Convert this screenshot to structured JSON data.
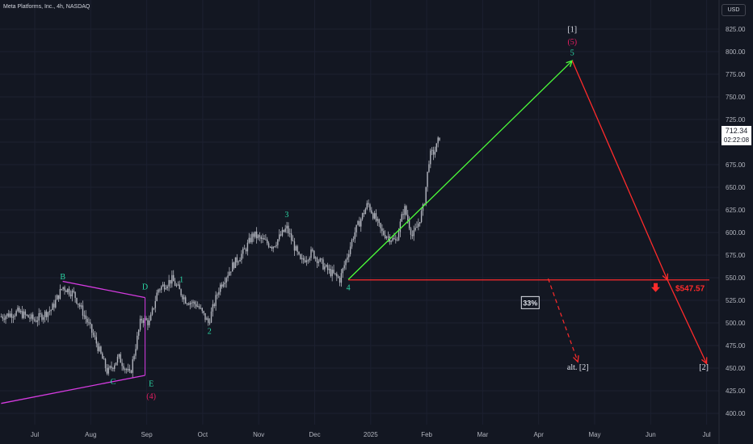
{
  "header": {
    "symbol_title": "Meta Platforms, Inc., 4h, NASDAQ",
    "currency": "USD"
  },
  "current_price": {
    "value": "712.34",
    "countdown": "02:22:08"
  },
  "colors": {
    "background": "#131722",
    "candles": "#b2b5be",
    "wave_green": "#2bd9a6",
    "wave_magenta": "#e91e63",
    "triangle_line": "#d53be0",
    "up_arrow": "#4cff3a",
    "down_arrow": "#ff2b2b",
    "label_white": "#e0e3eb"
  },
  "chart_data": {
    "type": "line",
    "title": "",
    "xlabel": "",
    "ylabel": "",
    "x_ticks": [
      "Jul",
      "Aug",
      "Sep",
      "Oct",
      "Nov",
      "Dec",
      "2025",
      "Feb",
      "Mar",
      "Apr",
      "May",
      "Jun",
      "Jul"
    ],
    "y_ticks": [
      400,
      425,
      450,
      475,
      500,
      525,
      550,
      575,
      600,
      625,
      650,
      675,
      700,
      725,
      750,
      775,
      800,
      825
    ],
    "ylim": [
      392,
      842
    ],
    "price_series": {
      "name": "",
      "t": [
        -0.6,
        -0.3,
        0,
        0.3,
        0.5,
        0.7,
        0.95,
        1.1,
        1.3,
        1.5,
        1.7,
        1.9,
        2.05,
        2.2,
        2.45,
        2.7,
        2.9,
        3.1,
        3.3,
        3.55,
        3.75,
        3.9,
        4.05,
        4.25,
        4.5,
        4.75,
        4.95,
        5.2,
        5.45,
        5.7,
        5.95,
        6.2,
        6.45,
        6.6,
        6.75,
        6.85,
        6.95,
        7.05,
        7.15,
        7.25
      ],
      "price": [
        507,
        512,
        503,
        515,
        540,
        532,
        500,
        478,
        445,
        462,
        442,
        505,
        500,
        537,
        548,
        525,
        520,
        500,
        540,
        565,
        580,
        598,
        592,
        585,
        605,
        567,
        578,
        560,
        548,
        598,
        632,
        600,
        590,
        628,
        595,
        610,
        630,
        685,
        690,
        710
      ]
    },
    "wave_labels": [
      {
        "text": "B",
        "t": 0.5,
        "price": 548,
        "color": "#2bd9a6"
      },
      {
        "text": "C",
        "t": 1.4,
        "price": 432,
        "color": "#2bd9a6"
      },
      {
        "text": "D",
        "t": 1.97,
        "price": 537,
        "color": "#2bd9a6"
      },
      {
        "text": "E",
        "t": 2.08,
        "price": 430,
        "color": "#2bd9a6"
      },
      {
        "text": "(4)",
        "t": 2.08,
        "price": 416,
        "color": "#e91e63"
      },
      {
        "text": "1",
        "t": 2.62,
        "price": 545,
        "color": "#2bd9a6"
      },
      {
        "text": "2",
        "t": 3.12,
        "price": 488,
        "color": "#2bd9a6"
      },
      {
        "text": "3",
        "t": 4.5,
        "price": 617,
        "color": "#2bd9a6"
      },
      {
        "text": "4",
        "t": 5.6,
        "price": 536,
        "color": "#2bd9a6"
      },
      {
        "text": "5",
        "t": 9.6,
        "price": 796,
        "color": "#2bd9a6"
      },
      {
        "text": "(5)",
        "t": 9.6,
        "price": 808,
        "color": "#e91e63"
      },
      {
        "text": "[1]",
        "t": 9.6,
        "price": 822,
        "color": "#e0e3eb"
      },
      {
        "text": "alt. [2]",
        "t": 9.7,
        "price": 448,
        "color": "#e0e3eb"
      },
      {
        "text": "[2]",
        "t": 11.95,
        "price": 448,
        "color": "#e0e3eb"
      }
    ],
    "triangle_lines": [
      {
        "t": [
          0.5,
          1.97
        ],
        "price": [
          546,
          528
        ]
      },
      {
        "t": [
          -0.6,
          1.97
        ],
        "price": [
          411,
          442
        ]
      }
    ],
    "projection_up": {
      "t": [
        5.6,
        9.6
      ],
      "price": [
        548,
        790
      ]
    },
    "projection_down": {
      "t": [
        9.6,
        11.3,
        12.0
      ],
      "price": [
        790,
        547.57,
        455
      ]
    },
    "projection_alt": {
      "t": [
        9.17,
        9.7
      ],
      "price": [
        549,
        457
      ]
    },
    "support_level": {
      "price": 547.57,
      "t_start": 5.6,
      "t_end": 13.3,
      "label": "$547.57"
    },
    "probability_label": {
      "text": "33%",
      "t": 8.85,
      "price": 522
    }
  }
}
